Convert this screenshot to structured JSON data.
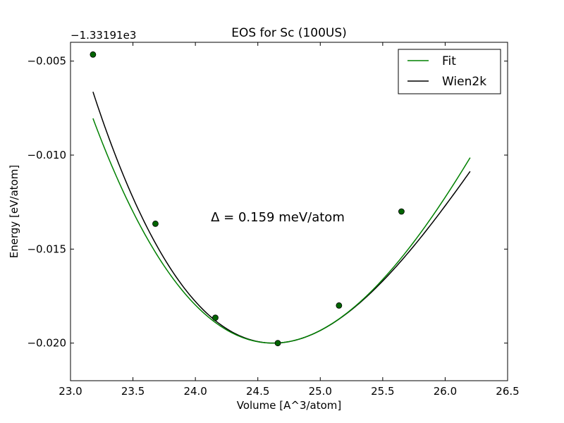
{
  "chart_data": {
    "type": "line",
    "title": "EOS for Sc (100US)",
    "xlabel": "Volume [A^3/atom]",
    "ylabel": "Energy [eV/atom]",
    "offset_label": "−1.33191e3",
    "xlim": [
      23.0,
      26.5
    ],
    "ylim": [
      -0.022,
      -0.004
    ],
    "x_ticks": [
      23.0,
      23.5,
      24.0,
      24.5,
      25.0,
      25.5,
      26.0,
      26.5
    ],
    "x_tick_labels": [
      "23.0",
      "23.5",
      "24.0",
      "24.5",
      "25.0",
      "25.5",
      "26.0",
      "26.5"
    ],
    "y_ticks": [
      -0.005,
      -0.01,
      -0.015,
      -0.02
    ],
    "y_tick_labels": [
      "−0.005",
      "−0.010",
      "−0.015",
      "−0.020"
    ],
    "grid": false,
    "legend_position": "top-right",
    "annotation": "Δ = 0.159 meV/atom",
    "series": [
      {
        "name": "Fit",
        "color": "#008000",
        "style": "line",
        "curve": {
          "x_range": [
            23.18,
            26.2
          ],
          "V0": 24.62,
          "E0": -0.02,
          "a": 0.0049,
          "b": -0.0006
        }
      },
      {
        "name": "Wien2k",
        "color": "#000000",
        "style": "line",
        "curve": {
          "x_range": [
            23.18,
            26.2
          ],
          "V0": 24.625,
          "E0": -0.02,
          "a": 0.0051,
          "b": -0.0009
        }
      },
      {
        "name": "Data points",
        "color": "#006400",
        "style": "markers",
        "x": [
          23.18,
          23.68,
          24.16,
          24.66,
          25.15,
          25.65
        ],
        "y": [
          -0.00465,
          -0.01365,
          -0.01865,
          -0.02,
          -0.018,
          -0.013
        ]
      }
    ]
  }
}
